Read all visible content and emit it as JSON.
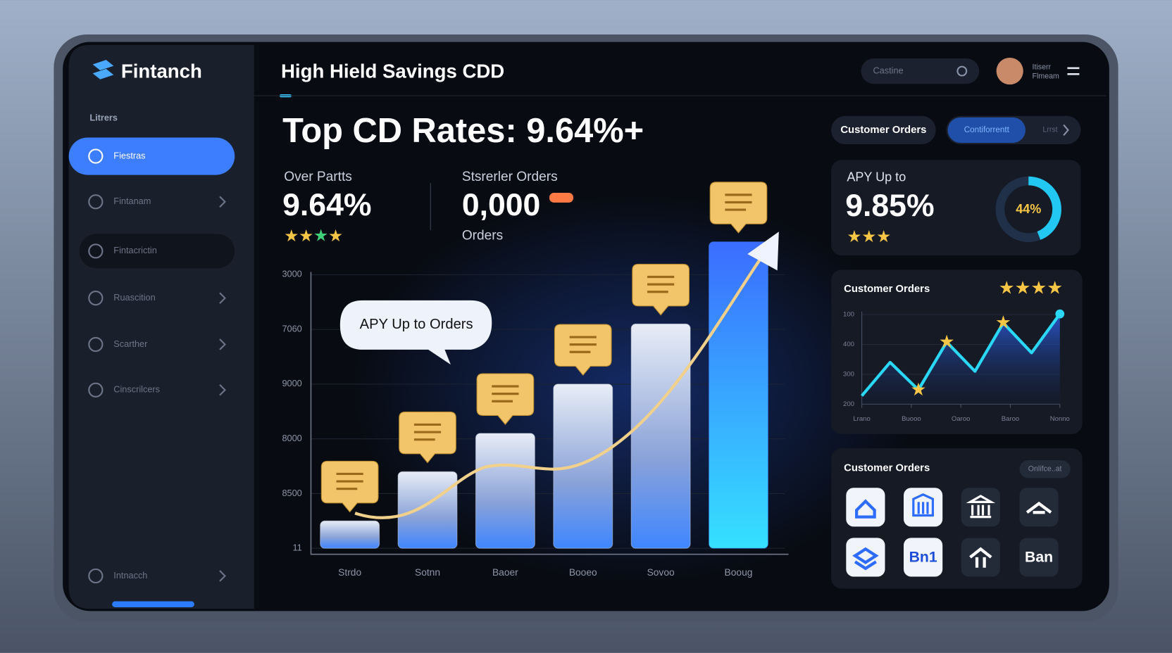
{
  "brand": "Fintanch",
  "sidebar": {
    "heading": "Litrers",
    "items": [
      "Fiestras",
      "Fintanam",
      "Fintacrictin",
      "Ruascition",
      "Scarther",
      "Cinscrilcers",
      "Intnacch"
    ]
  },
  "header": {
    "title": "High Hield Savings CDD",
    "search": "Castine",
    "user": [
      "Itiserr",
      "Flmeam"
    ]
  },
  "headline": "Top CD Rates: 9.64%+",
  "stats": [
    {
      "label": "Over Partts",
      "value": "9.64%"
    },
    {
      "label": "Stsrerler Orders",
      "value": "0,000",
      "unit": "Orders"
    }
  ],
  "tabs": [
    "Customer Orders",
    "Contiforrentt",
    "Lrrst"
  ],
  "apy_card": {
    "label": "APY Up to",
    "value": "9.85%",
    "donut": {
      "value": 44,
      "label": "44%"
    }
  },
  "icons_card": {
    "title": "Customer Orders",
    "button": "Onlifce..at",
    "icons": [
      "Bn1",
      "Ban"
    ]
  },
  "chart_data": [
    {
      "type": "bar",
      "annotation": "APY Up to Orders",
      "categories": [
        "Strdo",
        "Sotnn",
        "Baoer",
        "Booeo",
        "Sovoo",
        "Booug"
      ],
      "values": [
        0.5,
        1.4,
        2.1,
        3.0,
        4.1,
        5.6
      ],
      "colors": [
        "#c9d2e4",
        "#c9d2e4",
        "#c9d2e4",
        "#c9d2e4",
        "#c9d2e4",
        "#3b7bff"
      ],
      "ylim": [
        0,
        5.8
      ],
      "yticks": [
        {
          "value": 0,
          "label": "11"
        },
        {
          "value": 1,
          "label": "8500"
        },
        {
          "value": 2,
          "label": "8000"
        },
        {
          "value": 3,
          "label": "9000"
        },
        {
          "value": 4,
          "label": "7060"
        },
        {
          "value": 5,
          "label": "3000"
        }
      ],
      "grid": true
    },
    {
      "type": "line",
      "title": "Customer Orders",
      "color": "#2ad8f5",
      "x": [
        0,
        1,
        2,
        3,
        4,
        5,
        6,
        7
      ],
      "values": [
        0.28,
        1.4,
        0.48,
        2.08,
        1.1,
        2.72,
        1.72,
        3.02
      ],
      "xlim": [
        0,
        7
      ],
      "xticks": [
        {
          "value": 0,
          "label": "Lrano"
        },
        {
          "value": 1.75,
          "label": "Buooo"
        },
        {
          "value": 3.5,
          "label": "Oaroo"
        },
        {
          "value": 5.25,
          "label": "Baroo"
        },
        {
          "value": 7,
          "label": "Nonno"
        }
      ],
      "ylim": [
        0,
        3.1
      ],
      "yticks": [
        {
          "value": 0,
          "label": "200"
        },
        {
          "value": 1,
          "label": "300"
        },
        {
          "value": 2,
          "label": "400"
        },
        {
          "value": 3,
          "label": "100"
        }
      ],
      "grid": true
    }
  ]
}
